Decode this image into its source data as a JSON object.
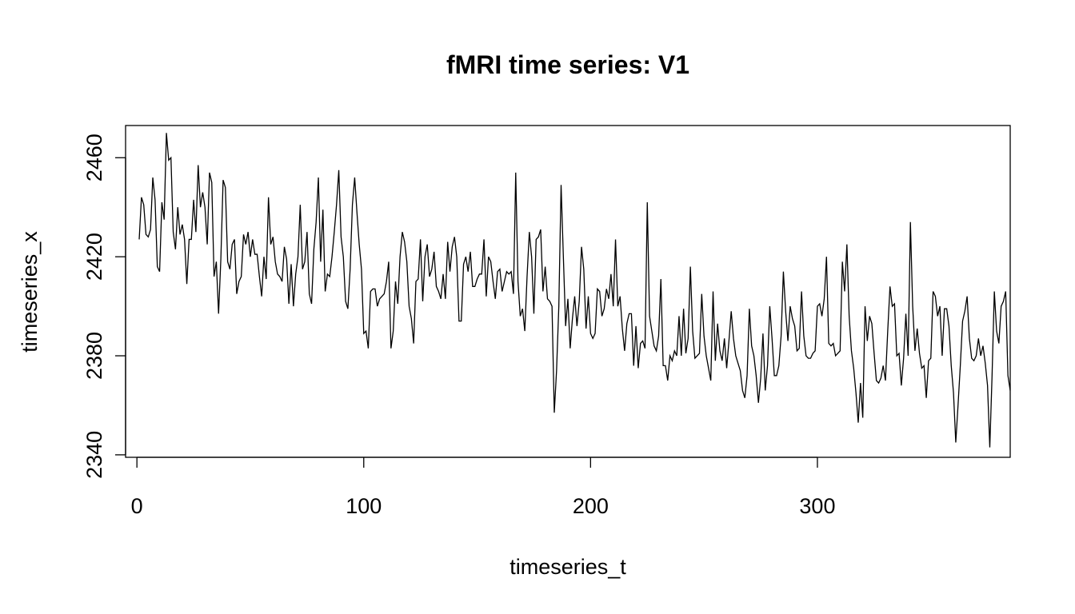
{
  "chart_data": {
    "type": "line",
    "title": "fMRI time series: V1",
    "xlabel": "timeseries_t",
    "ylabel": "timeseries_x",
    "xlim": [
      -5,
      385
    ],
    "ylim": [
      2339,
      2473
    ],
    "xticks": [
      0,
      100,
      200,
      300
    ],
    "yticks": [
      2340,
      2380,
      2420,
      2460
    ],
    "grid": false,
    "line_color": "#000000",
    "series": [
      {
        "t_start": 1,
        "t_step": 1,
        "values": [
          2427,
          2444,
          2441,
          2429,
          2428,
          2431,
          2452,
          2443,
          2416,
          2414,
          2442,
          2435,
          2470,
          2459,
          2460,
          2430,
          2423,
          2440,
          2429,
          2433,
          2427,
          2409,
          2427,
          2427,
          2443,
          2430,
          2457,
          2440,
          2446,
          2440,
          2425,
          2454,
          2450,
          2412,
          2418,
          2397,
          2419,
          2451,
          2448,
          2418,
          2415,
          2425,
          2427,
          2405,
          2410,
          2412,
          2429,
          2425,
          2430,
          2420,
          2427,
          2421,
          2421,
          2412,
          2404,
          2420,
          2411,
          2444,
          2425,
          2428,
          2418,
          2413,
          2412,
          2410,
          2424,
          2419,
          2401,
          2417,
          2400,
          2413,
          2420,
          2441,
          2415,
          2418,
          2430,
          2405,
          2401,
          2423,
          2434,
          2452,
          2418,
          2439,
          2406,
          2413,
          2412,
          2420,
          2430,
          2441,
          2455,
          2428,
          2420,
          2402,
          2399,
          2415,
          2441,
          2452,
          2438,
          2425,
          2415,
          2389,
          2390,
          2383,
          2406,
          2407,
          2407,
          2400,
          2403,
          2404,
          2405,
          2410,
          2418,
          2383,
          2390,
          2410,
          2401,
          2420,
          2430,
          2426,
          2418,
          2400,
          2395,
          2385,
          2410,
          2411,
          2427,
          2402,
          2420,
          2425,
          2412,
          2415,
          2422,
          2408,
          2406,
          2403,
          2413,
          2403,
          2426,
          2414,
          2424,
          2428,
          2420,
          2394,
          2394,
          2417,
          2420,
          2414,
          2422,
          2408,
          2408,
          2411,
          2413,
          2413,
          2427,
          2404,
          2420,
          2418,
          2410,
          2403,
          2414,
          2415,
          2406,
          2410,
          2414,
          2413,
          2414,
          2405,
          2454,
          2410,
          2396,
          2399,
          2390,
          2412,
          2430,
          2420,
          2397,
          2427,
          2428,
          2431,
          2406,
          2416,
          2403,
          2402,
          2400,
          2357,
          2374,
          2400,
          2449,
          2420,
          2392,
          2403,
          2383,
          2395,
          2404,
          2392,
          2402,
          2424,
          2415,
          2391,
          2404,
          2389,
          2387,
          2389,
          2407,
          2406,
          2396,
          2399,
          2407,
          2403,
          2413,
          2400,
          2427,
          2400,
          2404,
          2391,
          2382,
          2393,
          2397,
          2397,
          2376,
          2392,
          2375,
          2385,
          2386,
          2383,
          2442,
          2396,
          2390,
          2384,
          2382,
          2388,
          2411,
          2376,
          2376,
          2370,
          2380,
          2378,
          2382,
          2380,
          2396,
          2380,
          2399,
          2381,
          2387,
          2416,
          2390,
          2379,
          2380,
          2381,
          2405,
          2388,
          2380,
          2375,
          2370,
          2406,
          2378,
          2393,
          2382,
          2378,
          2387,
          2375,
          2386,
          2398,
          2387,
          2380,
          2377,
          2374,
          2366,
          2363,
          2372,
          2399,
          2384,
          2380,
          2372,
          2361,
          2371,
          2389,
          2366,
          2376,
          2400,
          2387,
          2372,
          2372,
          2376,
          2388,
          2414,
          2398,
          2386,
          2400,
          2395,
          2392,
          2382,
          2383,
          2406,
          2388,
          2380,
          2379,
          2379,
          2381,
          2382,
          2400,
          2401,
          2396,
          2403,
          2420,
          2385,
          2384,
          2385,
          2380,
          2381,
          2382,
          2418,
          2406,
          2425,
          2396,
          2382,
          2375,
          2365,
          2353,
          2369,
          2355,
          2400,
          2386,
          2396,
          2393,
          2381,
          2370,
          2369,
          2371,
          2376,
          2370,
          2390,
          2408,
          2400,
          2401,
          2380,
          2381,
          2368,
          2379,
          2397,
          2380,
          2434,
          2400,
          2382,
          2391,
          2381,
          2375,
          2376,
          2363,
          2378,
          2379,
          2406,
          2404,
          2396,
          2400,
          2380,
          2399,
          2399,
          2392,
          2376,
          2365,
          2345,
          2360,
          2376,
          2394,
          2398,
          2404,
          2387,
          2379,
          2378,
          2380,
          2387,
          2380,
          2384,
          2377,
          2368,
          2343,
          2372,
          2406,
          2390,
          2385,
          2400,
          2402,
          2406,
          2372,
          2366
        ]
      }
    ]
  }
}
